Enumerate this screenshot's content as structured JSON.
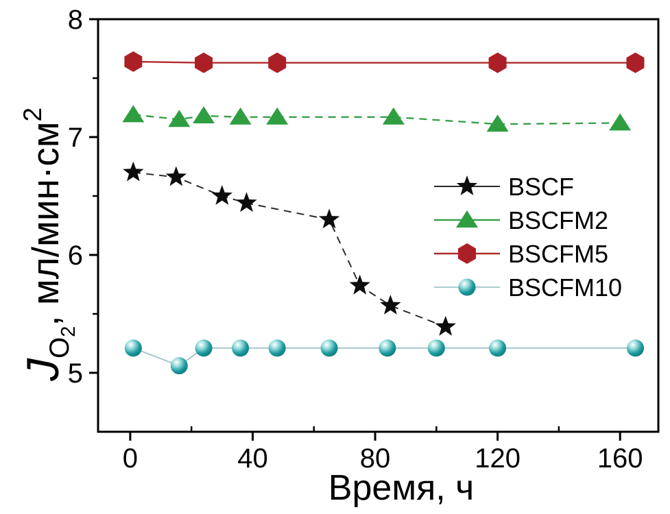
{
  "figure": {
    "background": "#ffffff",
    "text_color": "#000000"
  },
  "axis": {
    "x_label": "Время, ч",
    "y_label_main": "J",
    "y_label_sub_o": "O",
    "y_label_sub_2": "2",
    "y_label_rest": ", мл/мин·см",
    "y_label_sup": "2"
  },
  "chart_data": {
    "type": "line",
    "title": "",
    "xlabel": "Время, ч",
    "ylabel": "J_O2, мл/мин·см^2",
    "xlim": [
      -10.5,
      172.5
    ],
    "ylim": [
      4.5,
      8
    ],
    "x_major_ticks": [
      0,
      40,
      80,
      120,
      160
    ],
    "x_minor_ticks": [
      20,
      60,
      100,
      140
    ],
    "y_major_ticks": [
      5,
      6,
      7,
      8
    ],
    "y_minor_ticks": [
      5.5,
      6.5,
      7.5
    ],
    "grid": false,
    "legend_position": "right-center",
    "series": [
      {
        "name": "BSCF",
        "marker": "star",
        "color": "#0d0d0d",
        "line_color": "#2b2b2b",
        "line_style": "dashed",
        "line_width": 2,
        "points": [
          [
            1,
            6.7
          ],
          [
            15,
            6.66
          ],
          [
            30,
            6.5
          ],
          [
            38,
            6.44
          ],
          [
            65,
            6.3
          ],
          [
            75,
            5.74
          ],
          [
            85,
            5.57
          ],
          [
            103,
            5.39
          ]
        ]
      },
      {
        "name": "BSCFM2",
        "marker": "triangle",
        "color": "#2e9e40",
        "line_color": "#3aa04a",
        "line_style": "dashed",
        "line_width": 2.4,
        "points": [
          [
            1,
            7.19
          ],
          [
            16,
            7.15
          ],
          [
            24,
            7.18
          ],
          [
            36,
            7.17
          ],
          [
            48,
            7.17
          ],
          [
            86,
            7.17
          ],
          [
            120,
            7.11
          ],
          [
            160,
            7.12
          ]
        ]
      },
      {
        "name": "BSCFM5",
        "marker": "hexagon",
        "color": "#ab2026",
        "line_color": "#b02a2a",
        "line_style": "solid",
        "line_width": 2.4,
        "points": [
          [
            1,
            7.64
          ],
          [
            24,
            7.63
          ],
          [
            48,
            7.63
          ],
          [
            120,
            7.63
          ],
          [
            165,
            7.63
          ]
        ]
      },
      {
        "name": "BSCFM10",
        "marker": "sphere",
        "color": "#1b9a9e",
        "line_color": "#9fc3c8",
        "line_style": "solid",
        "line_width": 1.8,
        "points": [
          [
            1,
            5.21
          ],
          [
            16,
            5.06
          ],
          [
            24,
            5.21
          ],
          [
            36,
            5.21
          ],
          [
            48,
            5.21
          ],
          [
            65,
            5.21
          ],
          [
            84,
            5.21
          ],
          [
            100,
            5.21
          ],
          [
            120,
            5.21
          ],
          [
            165,
            5.21
          ]
        ]
      }
    ]
  }
}
